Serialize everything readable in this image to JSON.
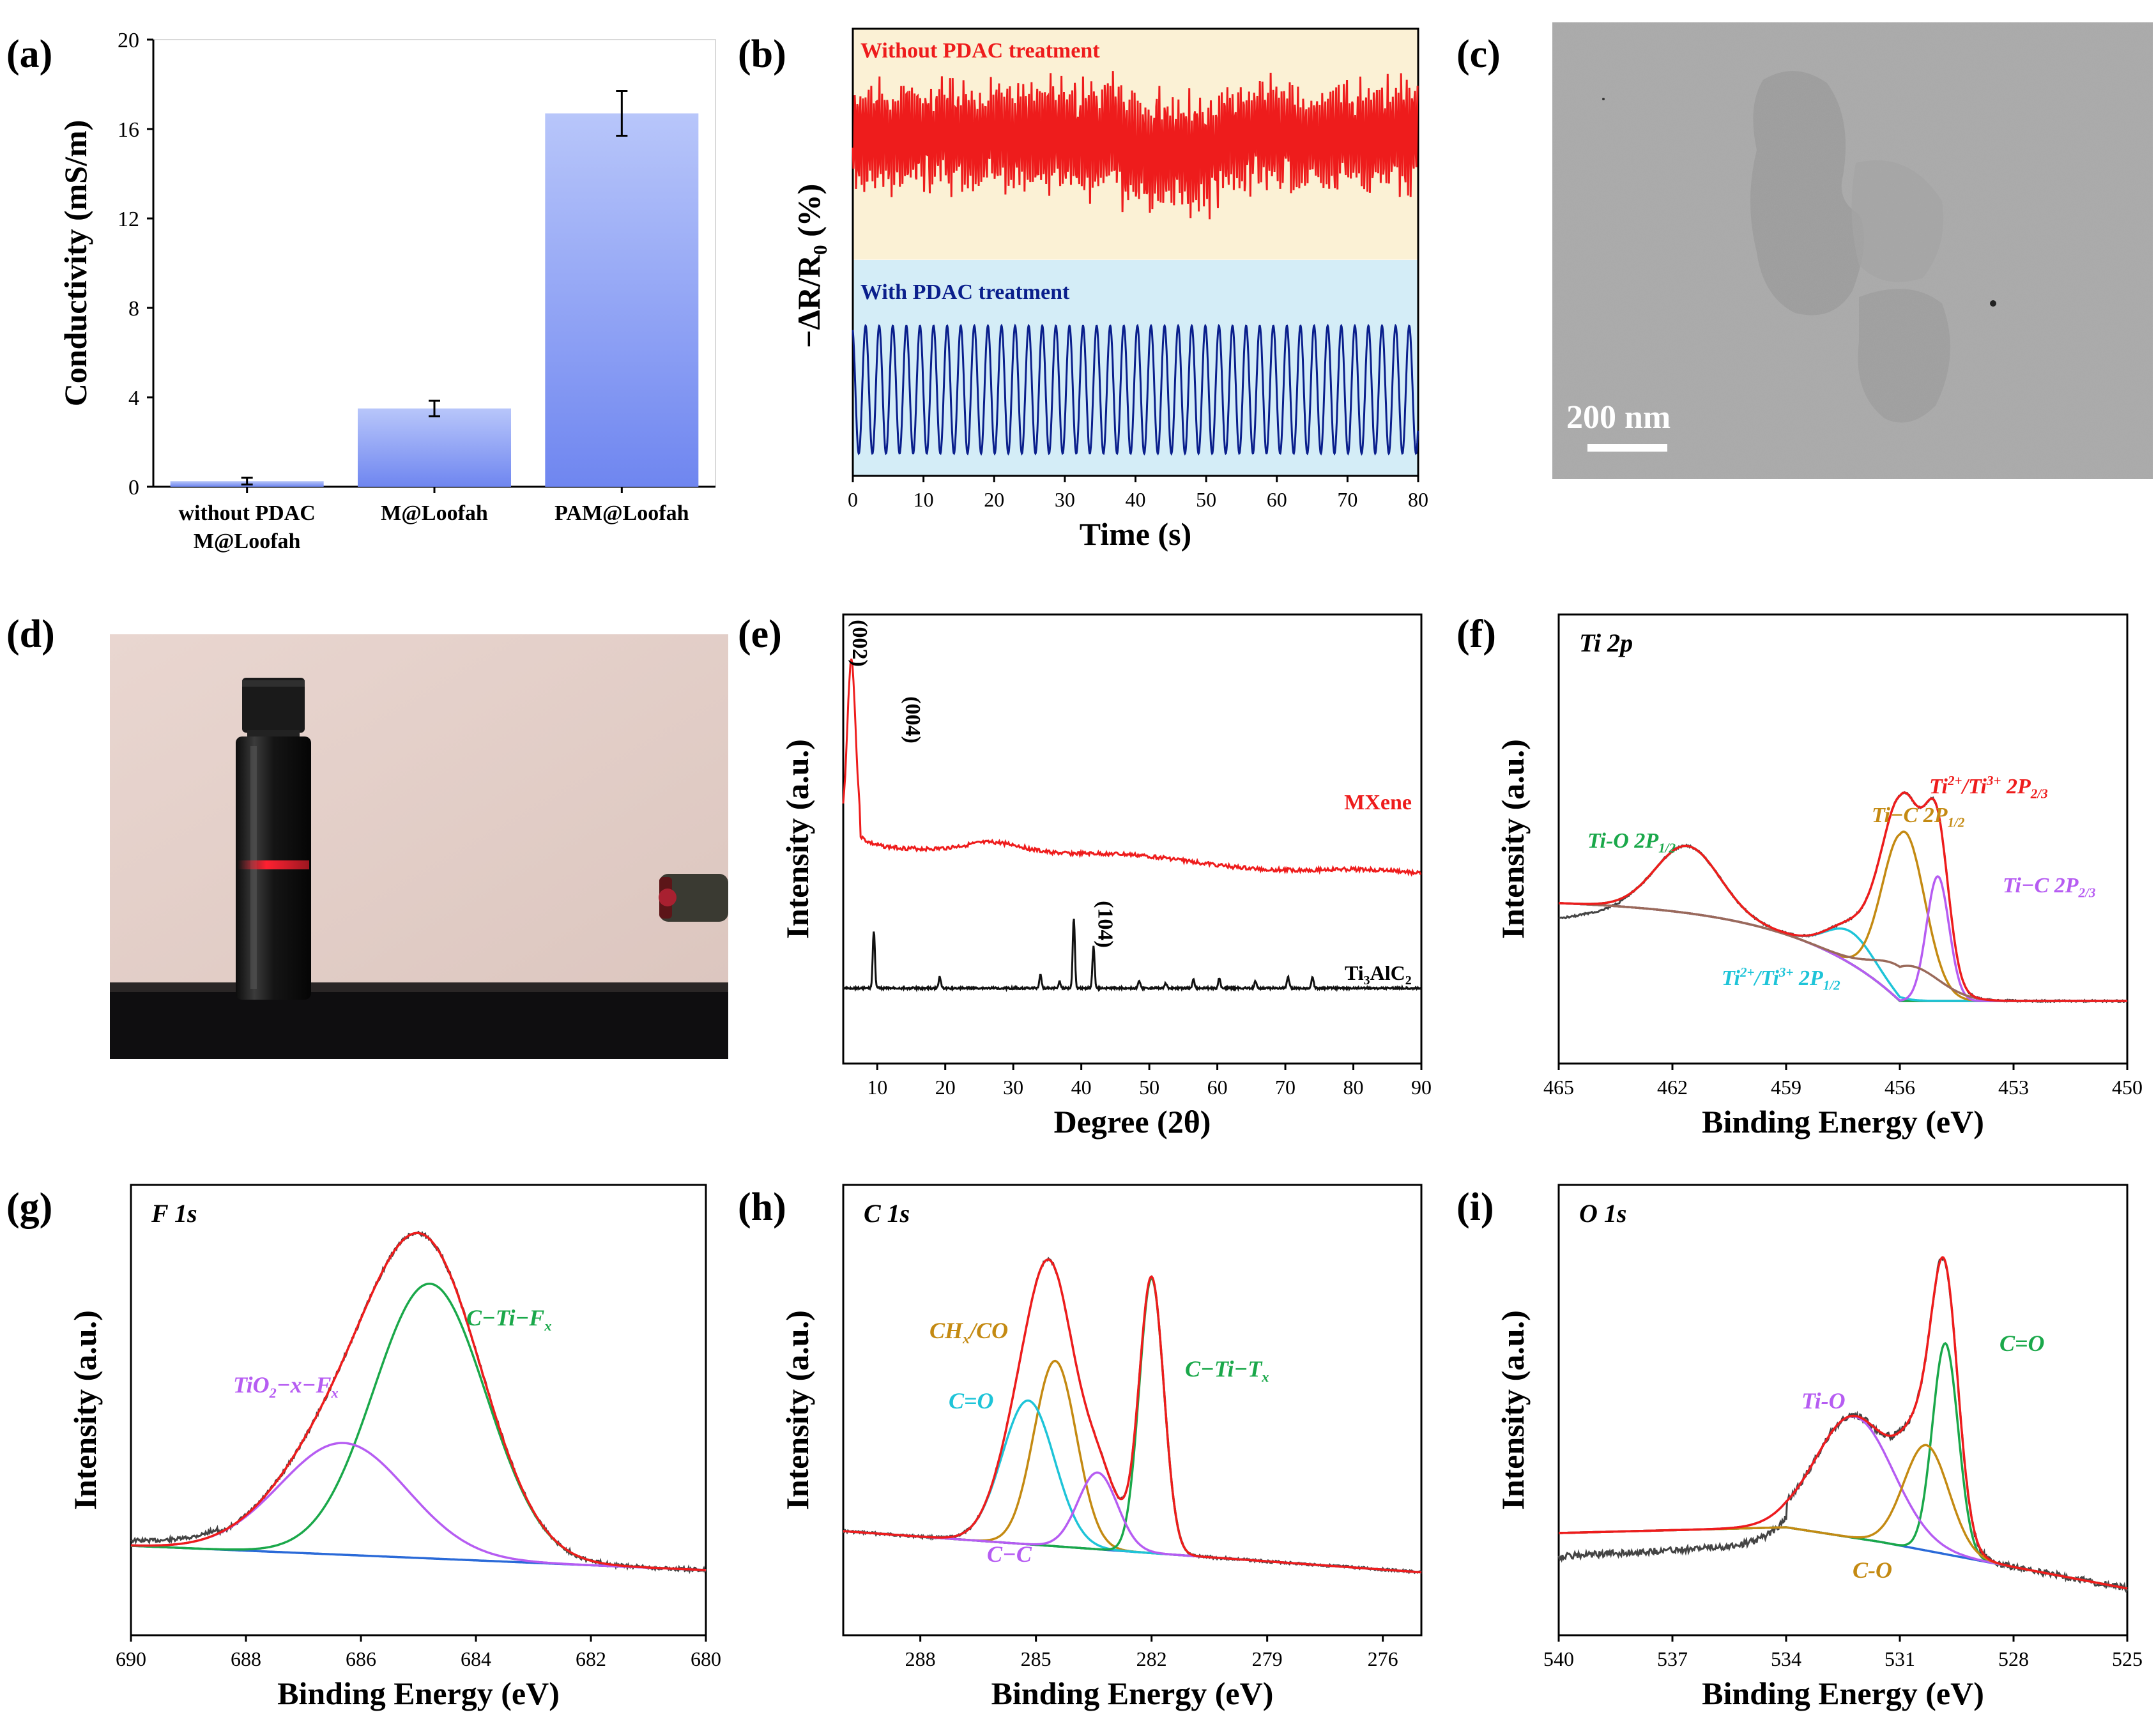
{
  "panel_letters": [
    "(a)",
    "(b)",
    "(c)",
    "(d)",
    "(e)",
    "(f)",
    "(g)",
    "(h)",
    "(i)"
  ],
  "colors": {
    "bar": "#6f86f0",
    "red": "#ee1c1c",
    "navy": "#0a1f8c",
    "beige": "#fbf1d5",
    "lightblue": "#d4edf7",
    "green": "#1aa84a",
    "gold": "#c48a12",
    "cyan": "#1ec4d8",
    "violet": "#b65cf2",
    "blue": "#2a6ad8",
    "gray": "#444444"
  },
  "tem": {
    "scale_label": "200 nm"
  },
  "chart_data": [
    {
      "id": "a",
      "type": "bar",
      "ylabel": "Conductivity (mS/m)",
      "ylim": [
        0,
        20
      ],
      "yticks": [
        0,
        4,
        8,
        12,
        16,
        20
      ],
      "categories": [
        [
          "without PDAC",
          "M@Loofah"
        ],
        [
          "M@Loofah"
        ],
        [
          "PAM@Loofah"
        ]
      ],
      "values": [
        0.25,
        3.5,
        16.7
      ],
      "errors": [
        0.15,
        0.35,
        1.0
      ]
    },
    {
      "id": "b",
      "type": "line",
      "xlabel": "Time (s)",
      "ylabel": "−ΔR/R",
      "ylabel_sub": "0",
      "ylabel_tail": " (%)",
      "xlim": [
        0,
        80
      ],
      "xticks": [
        0,
        10,
        20,
        30,
        40,
        50,
        60,
        70,
        80
      ],
      "series": [
        {
          "name": "Without PDAC treatment",
          "shape": "noisy"
        },
        {
          "name": "With PDAC treatment",
          "shape": "regular"
        }
      ]
    },
    {
      "id": "e",
      "type": "line",
      "xlabel": "Degree (2θ)",
      "ylabel": "Intensity (a.u.)",
      "xlim": [
        5,
        90
      ],
      "xticks": [
        10,
        20,
        30,
        40,
        50,
        60,
        70,
        80,
        90
      ],
      "series": [
        {
          "name": "MXene"
        },
        {
          "name": "Ti",
          "sub": "3",
          "mid": "AlC",
          "sub2": "2"
        }
      ],
      "annotations": [
        "(002)",
        "(004)",
        "(104)"
      ],
      "peaks_ti3alc2": [
        9.5,
        19.2,
        34,
        36.8,
        38.9,
        41.8,
        48.5,
        52.4,
        56.5,
        60.3,
        65.6,
        70.4,
        74.0
      ],
      "peaks_mxene": [
        6.5,
        14
      ]
    },
    {
      "id": "f",
      "type": "line",
      "title": "Ti 2p",
      "xlabel": "Binding Energy (eV)",
      "ylabel": "Intensity (a.u.)",
      "xlim": [
        465,
        450
      ],
      "xticks": [
        465,
        462,
        459,
        456,
        453,
        450
      ],
      "labels": [
        {
          "b": "Ti-O 2P",
          "s": "1/2"
        },
        {
          "b": "Ti−C 2P",
          "s": "1/2"
        },
        {
          "b": "Ti",
          "p1": "2+",
          "m": "/Ti",
          "p2": "3+",
          "t": " 2P",
          "s": "2/3"
        },
        {
          "b": "Ti−C  2P",
          "s": "2/3"
        },
        {
          "b": "Ti",
          "p1": "2+",
          "m": "/Ti",
          "p2": "3+",
          "t": " 2P",
          "s": "1/2"
        }
      ],
      "components": [
        {
          "center": 461.6,
          "fwhm": 2.0
        },
        {
          "center": 457.3,
          "fwhm": 1.5
        },
        {
          "center": 455.9,
          "fwhm": 1.3
        },
        {
          "center": 455.0,
          "fwhm": 0.7
        },
        {
          "center": 455.8,
          "fwhm": 1.9
        }
      ]
    },
    {
      "id": "g",
      "type": "line",
      "title": "F 1s",
      "xlabel": "Binding Energy (eV)",
      "ylabel": "Intensity (a.u.)",
      "xlim": [
        690,
        680
      ],
      "xticks": [
        690,
        688,
        686,
        684,
        682,
        680
      ],
      "labels": [
        {
          "b": "C−Ti−F",
          "s": "x"
        },
        {
          "b": "TiO",
          "s": "2",
          "t": "−x−F",
          "s2": "x"
        }
      ],
      "components": [
        {
          "center": 684.8,
          "fwhm": 2.3
        },
        {
          "center": 686.3,
          "fwhm": 2.6
        }
      ]
    },
    {
      "id": "h",
      "type": "line",
      "title": "C 1s",
      "xlabel": "Binding Energy (eV)",
      "ylabel": "Intensity (a.u.)",
      "xlim": [
        290,
        275
      ],
      "xticks": [
        288,
        285,
        282,
        279,
        276
      ],
      "labels": [
        {
          "b": "CH",
          "s": "x",
          "t": "/CO"
        },
        {
          "b": "C=O"
        },
        {
          "b": "C−Ti−T",
          "s": "x"
        },
        {
          "b": "C−C"
        }
      ],
      "components": [
        {
          "center": 284.5,
          "fwhm": 1.3
        },
        {
          "center": 285.2,
          "fwhm": 1.6
        },
        {
          "center": 282.0,
          "fwhm": 0.75
        },
        {
          "center": 283.4,
          "fwhm": 1.2
        }
      ]
    },
    {
      "id": "i",
      "type": "line",
      "title": "O 1s",
      "xlabel": "Binding Energy (eV)",
      "ylabel": "Intensity (a.u.)",
      "xlim": [
        540,
        525
      ],
      "xticks": [
        540,
        537,
        534,
        531,
        528,
        525
      ],
      "labels": [
        {
          "b": "C=O"
        },
        {
          "b": "Ti-O"
        },
        {
          "b": "C-O"
        }
      ],
      "components": [
        {
          "center": 529.8,
          "fwhm": 0.8
        },
        {
          "center": 532.2,
          "fwhm": 2.4
        },
        {
          "center": 530.3,
          "fwhm": 1.4
        }
      ]
    }
  ]
}
